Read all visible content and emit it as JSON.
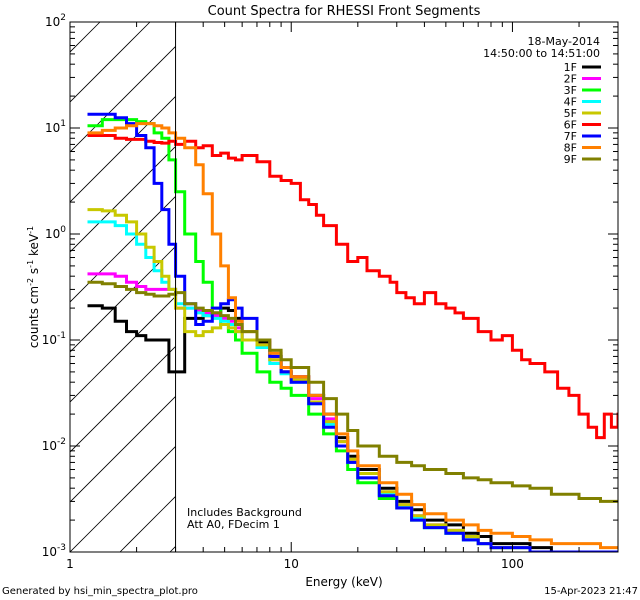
{
  "chart_data": {
    "type": "line",
    "title": "Count Spectra for RHESSI Front Segments",
    "xlabel": "Energy (keV)",
    "ylabel": "counts cm",
    "ylabel_sup1": "-2",
    "ylabel_mid": " s",
    "ylabel_sup2": "-1",
    "ylabel_tail": " keV",
    "ylabel_sup3": "-1",
    "xscale": "log",
    "yscale": "log",
    "xlim": [
      1,
      300
    ],
    "ylim": [
      0.001,
      100
    ],
    "x_tick_labels": [
      {
        "value": 1,
        "text": "1"
      },
      {
        "value": 10,
        "text": "10"
      },
      {
        "value": 100,
        "text": "100"
      }
    ],
    "y_tick_labels": [
      {
        "value": 100,
        "base": "10",
        "exp": "2"
      },
      {
        "value": 10,
        "base": "10",
        "exp": "1"
      },
      {
        "value": 1,
        "base": "10",
        "exp": "0"
      },
      {
        "value": 0.1,
        "base": "10",
        "exp": "-1"
      },
      {
        "value": 0.01,
        "base": "10",
        "exp": "-2"
      },
      {
        "value": 0.001,
        "base": "10",
        "exp": "-3"
      }
    ],
    "date_label": "18-May-2014",
    "time_label": "14:50:00 to 14:51:00",
    "annotation_line1": "Includes Background",
    "annotation_line2": "Att A0, FDecim 1",
    "hatched_below_keV": 3,
    "series": [
      {
        "name": "1F",
        "color": "#000000",
        "x": [
          1.2,
          1.4,
          1.6,
          1.8,
          2.0,
          2.2,
          2.4,
          2.6,
          2.8,
          3.0,
          3.3,
          3.7,
          4.0,
          4.4,
          4.8,
          5.2,
          5.6,
          6,
          7,
          8,
          9,
          10,
          12,
          14,
          16,
          18,
          20,
          25,
          30,
          35,
          40,
          50,
          60,
          70,
          80,
          100,
          120,
          150,
          200,
          250,
          300
        ],
        "values": [
          0.21,
          0.2,
          0.15,
          0.12,
          0.11,
          0.1,
          0.1,
          0.1,
          0.05,
          0.05,
          0.16,
          0.16,
          0.17,
          0.18,
          0.2,
          0.19,
          0.16,
          0.1,
          0.095,
          0.07,
          0.05,
          0.045,
          0.03,
          0.02,
          0.012,
          0.008,
          0.006,
          0.004,
          0.003,
          0.0025,
          0.002,
          0.0018,
          0.0015,
          0.0014,
          0.0012,
          0.0012,
          0.0011,
          0.001,
          0.001,
          0.001,
          0.001
        ]
      },
      {
        "name": "2F",
        "color": "#ff00ff",
        "x": [
          1.2,
          1.4,
          1.6,
          1.8,
          2.0,
          2.2,
          2.4,
          2.6,
          2.8,
          3.0,
          3.3,
          3.7,
          4.0,
          4.4,
          4.8,
          5.2,
          5.6,
          6,
          7,
          8,
          9,
          10,
          12,
          14,
          16,
          18,
          20,
          25,
          30,
          35,
          40,
          50,
          60,
          70,
          80,
          100,
          120,
          150,
          200,
          250,
          300
        ],
        "values": [
          0.42,
          0.42,
          0.4,
          0.35,
          0.32,
          0.3,
          0.3,
          0.3,
          0.3,
          0.2,
          0.2,
          0.19,
          0.18,
          0.17,
          0.16,
          0.15,
          0.13,
          0.1,
          0.09,
          0.065,
          0.05,
          0.045,
          0.028,
          0.018,
          0.011,
          0.007,
          0.005,
          0.0035,
          0.0028,
          0.0022,
          0.0018,
          0.0016,
          0.0014,
          0.0012,
          0.0011,
          0.0011,
          0.001,
          0.001,
          0.001,
          0.001,
          0.001
        ]
      },
      {
        "name": "3F",
        "color": "#00ff00",
        "x": [
          1.2,
          1.4,
          1.6,
          1.8,
          2.0,
          2.2,
          2.4,
          2.6,
          2.8,
          3.0,
          3.3,
          3.7,
          4.0,
          4.4,
          4.8,
          5.2,
          5.6,
          6,
          7,
          8,
          9,
          10,
          12,
          14,
          16,
          18,
          20,
          25,
          30,
          35,
          40,
          50,
          60,
          70,
          80,
          100,
          120,
          150,
          200,
          250,
          300
        ],
        "values": [
          10.5,
          12,
          12,
          12,
          11.5,
          11,
          9,
          8,
          5,
          2.5,
          1,
          0.55,
          0.35,
          0.2,
          0.14,
          0.12,
          0.1,
          0.075,
          0.05,
          0.04,
          0.035,
          0.03,
          0.02,
          0.013,
          0.009,
          0.006,
          0.0045,
          0.0032,
          0.0026,
          0.002,
          0.0017,
          0.0015,
          0.0013,
          0.0012,
          0.0011,
          0.0011,
          0.001,
          0.001,
          0.001,
          0.001,
          0.001
        ]
      },
      {
        "name": "4F",
        "color": "#00ffff",
        "x": [
          1.2,
          1.4,
          1.6,
          1.8,
          2.0,
          2.2,
          2.4,
          2.6,
          2.8,
          3.0,
          3.3,
          3.7,
          4.0,
          4.4,
          4.8,
          5.2,
          5.6,
          6,
          7,
          8,
          9,
          10,
          12,
          14,
          16,
          18,
          20,
          25,
          30,
          35,
          40,
          50,
          60,
          70,
          80,
          100,
          120,
          150,
          200,
          250,
          300
        ],
        "values": [
          1.3,
          1.3,
          1.2,
          1.0,
          0.8,
          0.6,
          0.45,
          0.35,
          0.3,
          0.22,
          0.2,
          0.18,
          0.17,
          0.16,
          0.15,
          0.14,
          0.12,
          0.1,
          0.085,
          0.06,
          0.048,
          0.04,
          0.025,
          0.016,
          0.01,
          0.007,
          0.005,
          0.0035,
          0.0027,
          0.0021,
          0.0017,
          0.0015,
          0.0013,
          0.0012,
          0.0011,
          0.0011,
          0.001,
          0.001,
          0.001,
          0.001,
          0.001
        ]
      },
      {
        "name": "5F",
        "color": "#c8c800",
        "x": [
          1.2,
          1.4,
          1.6,
          1.8,
          2.0,
          2.2,
          2.4,
          2.6,
          2.8,
          3.0,
          3.3,
          3.7,
          4.0,
          4.4,
          4.8,
          5.2,
          5.6,
          6,
          7,
          8,
          9,
          10,
          12,
          14,
          16,
          18,
          20,
          25,
          30,
          35,
          40,
          50,
          60,
          70,
          80,
          100,
          120,
          150,
          200,
          250,
          300
        ],
        "values": [
          1.7,
          1.65,
          1.5,
          1.3,
          1.0,
          0.75,
          0.55,
          0.4,
          0.3,
          0.2,
          0.12,
          0.11,
          0.12,
          0.13,
          0.14,
          0.13,
          0.12,
          0.1,
          0.09,
          0.065,
          0.05,
          0.042,
          0.026,
          0.017,
          0.011,
          0.0075,
          0.0055,
          0.0037,
          0.0028,
          0.0022,
          0.0018,
          0.0016,
          0.0014,
          0.0012,
          0.0011,
          0.0011,
          0.001,
          0.001,
          0.001,
          0.001,
          0.001
        ]
      },
      {
        "name": "6F",
        "color": "#ff0000",
        "x": [
          1.2,
          1.4,
          1.6,
          1.8,
          2.0,
          2.2,
          2.4,
          2.6,
          2.8,
          3.0,
          3.3,
          3.7,
          4.0,
          4.4,
          4.8,
          5.2,
          5.6,
          6,
          7,
          8,
          9,
          10,
          11,
          12,
          13,
          14,
          15,
          16,
          18,
          20,
          22,
          25,
          28,
          30,
          33,
          36,
          40,
          45,
          50,
          55,
          60,
          70,
          80,
          90,
          100,
          110,
          120,
          140,
          160,
          180,
          200,
          220,
          240,
          260,
          280,
          300
        ],
        "values": [
          8.5,
          8.5,
          8,
          7.8,
          7.8,
          7.5,
          7.3,
          7.2,
          7.5,
          7,
          7.5,
          6.5,
          6.8,
          5.5,
          5.8,
          5.2,
          5,
          5.5,
          4.8,
          3.5,
          3.2,
          3,
          2.1,
          1.9,
          1.5,
          1.2,
          1.2,
          0.8,
          0.55,
          0.6,
          0.45,
          0.4,
          0.35,
          0.28,
          0.25,
          0.22,
          0.28,
          0.22,
          0.2,
          0.18,
          0.16,
          0.12,
          0.1,
          0.11,
          0.08,
          0.065,
          0.06,
          0.05,
          0.035,
          0.03,
          0.02,
          0.015,
          0.012,
          0.02,
          0.015,
          0.02
        ]
      },
      {
        "name": "7F",
        "color": "#0000ff",
        "x": [
          1.2,
          1.4,
          1.6,
          1.8,
          2.0,
          2.2,
          2.4,
          2.6,
          2.8,
          3.0,
          3.3,
          3.7,
          4.0,
          4.4,
          4.8,
          5.2,
          5.6,
          6,
          7,
          8,
          9,
          10,
          12,
          14,
          16,
          18,
          20,
          25,
          30,
          35,
          40,
          50,
          60,
          70,
          80,
          100,
          120,
          150,
          200,
          250,
          300
        ],
        "values": [
          13.5,
          13.5,
          12.5,
          11,
          8.5,
          6.5,
          3,
          1.7,
          0.8,
          0.4,
          0.22,
          0.14,
          0.15,
          0.2,
          0.22,
          0.24,
          0.2,
          0.16,
          0.1,
          0.07,
          0.05,
          0.04,
          0.025,
          0.015,
          0.01,
          0.007,
          0.005,
          0.0034,
          0.0026,
          0.002,
          0.0017,
          0.0015,
          0.0013,
          0.0012,
          0.0011,
          0.0011,
          0.001,
          0.001,
          0.001,
          0.001,
          0.001
        ]
      },
      {
        "name": "8F",
        "color": "#ff8000",
        "x": [
          1.2,
          1.4,
          1.6,
          1.8,
          2.0,
          2.2,
          2.4,
          2.6,
          2.8,
          3.0,
          3.3,
          3.7,
          4.0,
          4.4,
          4.8,
          5.2,
          5.6,
          6,
          7,
          8,
          9,
          10,
          12,
          14,
          16,
          18,
          20,
          25,
          30,
          35,
          40,
          50,
          60,
          70,
          80,
          100,
          120,
          150,
          200,
          250,
          300
        ],
        "values": [
          9,
          9.5,
          10,
          10.5,
          11,
          11,
          10.5,
          10,
          9,
          8,
          6.5,
          4.5,
          2.4,
          1.0,
          0.5,
          0.25,
          0.15,
          0.12,
          0.1,
          0.075,
          0.055,
          0.045,
          0.03,
          0.02,
          0.013,
          0.009,
          0.0065,
          0.0045,
          0.0035,
          0.0028,
          0.0023,
          0.002,
          0.0018,
          0.0016,
          0.0015,
          0.0014,
          0.0013,
          0.0012,
          0.0012,
          0.0011,
          0.0011
        ]
      },
      {
        "name": "9F",
        "color": "#808000",
        "x": [
          1.2,
          1.4,
          1.6,
          1.8,
          2.0,
          2.2,
          2.4,
          2.6,
          2.8,
          3.0,
          3.3,
          3.7,
          4.0,
          4.4,
          4.8,
          5.2,
          5.6,
          6,
          7,
          8,
          9,
          10,
          12,
          14,
          16,
          18,
          20,
          25,
          30,
          35,
          40,
          50,
          60,
          70,
          80,
          100,
          120,
          150,
          200,
          250,
          300
        ],
        "values": [
          0.35,
          0.34,
          0.32,
          0.3,
          0.28,
          0.27,
          0.26,
          0.26,
          0.27,
          0.28,
          0.22,
          0.2,
          0.19,
          0.18,
          0.17,
          0.16,
          0.14,
          0.12,
          0.1,
          0.08,
          0.065,
          0.055,
          0.04,
          0.028,
          0.02,
          0.014,
          0.01,
          0.008,
          0.007,
          0.0065,
          0.006,
          0.0055,
          0.005,
          0.0048,
          0.0045,
          0.0042,
          0.004,
          0.0035,
          0.0032,
          0.003,
          0.003
        ]
      }
    ]
  },
  "footer": {
    "generated_by": "Generated by hsi_min_spectra_plot.pro",
    "timestamp": "15-Apr-2023 21:47"
  }
}
